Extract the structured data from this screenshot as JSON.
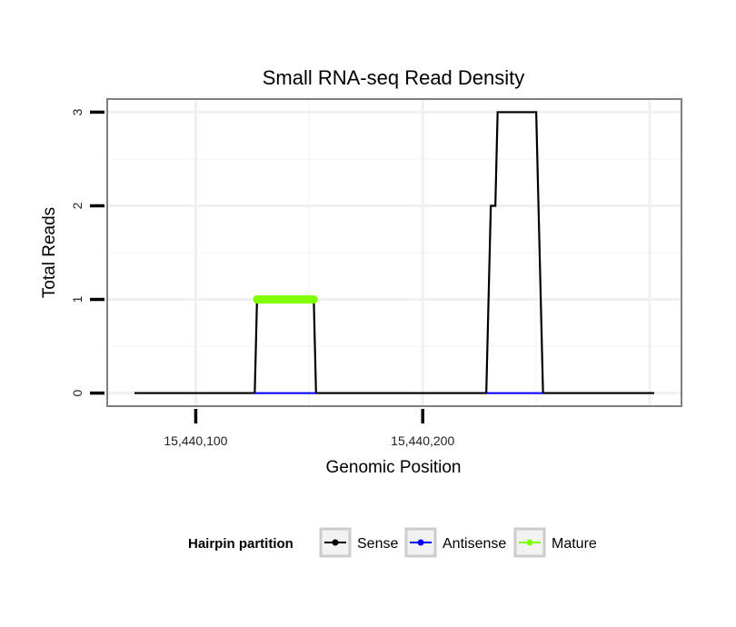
{
  "chart_data": {
    "type": "line",
    "title": "Small RNA-seq Read Density",
    "xlabel": "Genomic Position",
    "ylabel": "Total Reads",
    "xlim": [
      15440061,
      15440314
    ],
    "ylim": [
      -0.14,
      3.14
    ],
    "x_ticks": [
      {
        "value": 15440100,
        "label": "15,440,100"
      },
      {
        "value": 15440200,
        "label": "15,440,200"
      }
    ],
    "y_ticks": [
      {
        "value": 0,
        "label": "0"
      },
      {
        "value": 1,
        "label": "1"
      },
      {
        "value": 2,
        "label": "2"
      },
      {
        "value": 3,
        "label": "3"
      }
    ],
    "grid": true,
    "legend": {
      "title": "Hairpin partition",
      "position": "bottom",
      "entries": [
        "Sense",
        "Antisense",
        "Mature"
      ]
    },
    "series": [
      {
        "name": "Sense",
        "color": "#000000",
        "points": [
          {
            "x": 15440073,
            "y": 0
          },
          {
            "x": 15440126,
            "y": 0
          },
          {
            "x": 15440127,
            "y": 1
          },
          {
            "x": 15440152,
            "y": 1
          },
          {
            "x": 15440153,
            "y": 0
          },
          {
            "x": 15440228,
            "y": 0
          },
          {
            "x": 15440230,
            "y": 2
          },
          {
            "x": 15440232,
            "y": 2
          },
          {
            "x": 15440233,
            "y": 3
          },
          {
            "x": 15440250,
            "y": 3
          },
          {
            "x": 15440253,
            "y": 0
          },
          {
            "x": 15440302,
            "y": 0
          }
        ]
      },
      {
        "name": "Antisense",
        "color": "#0000ff",
        "points": [
          {
            "x": 15440126,
            "y": 0
          },
          {
            "x": 15440153,
            "y": 0
          },
          {
            "x": 15440228,
            "y": 0
          },
          {
            "x": 15440253,
            "y": 0
          }
        ]
      },
      {
        "name": "Mature",
        "color": "#7fff00",
        "points": [
          {
            "x": 15440127,
            "y": 1
          },
          {
            "x": 15440152,
            "y": 1
          }
        ]
      }
    ]
  }
}
